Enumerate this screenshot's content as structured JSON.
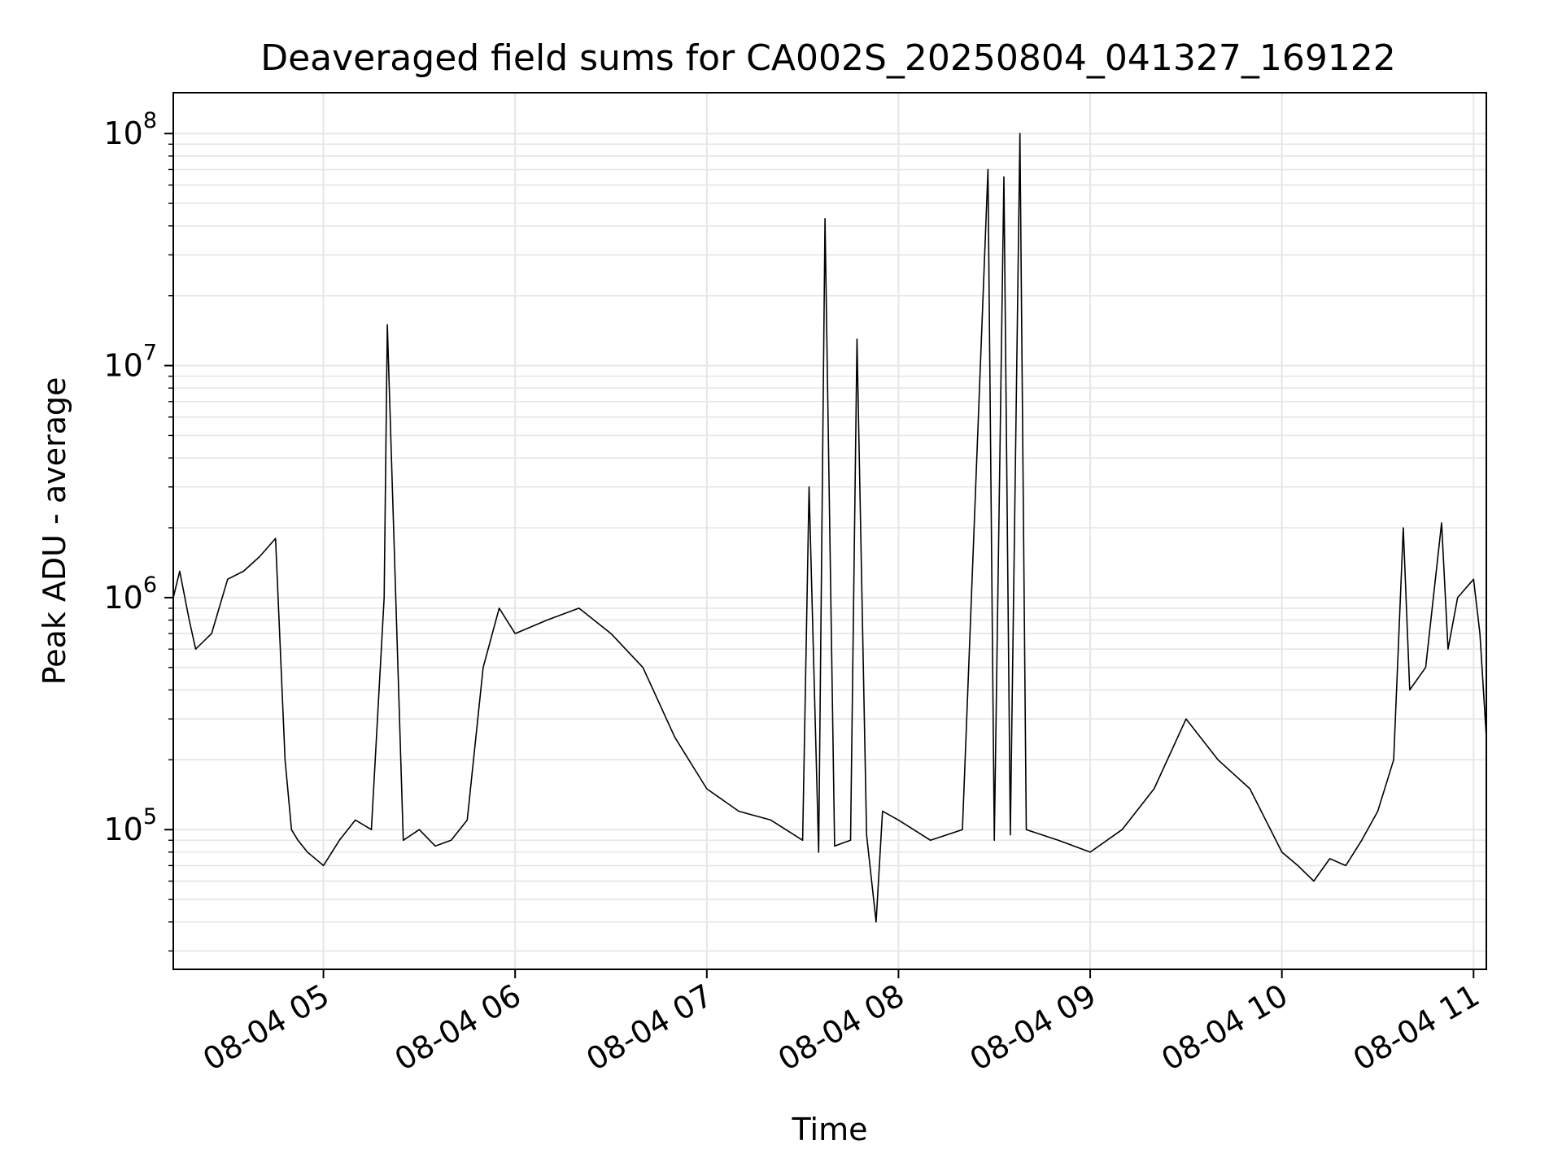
{
  "chart_data": {
    "type": "line",
    "title": "Deaveraged field sums for CA002S_20250804_041327_169122",
    "xlabel": "Time",
    "ylabel": "Peak ADU - average",
    "yscale": "log",
    "ylim": [
      25000,
      150000000
    ],
    "xlim": [
      "08-04 04:13",
      "08-04 11:04"
    ],
    "grid": true,
    "line_color": "#000000",
    "x_ticks": [
      "08-04 05",
      "08-04 06",
      "08-04 07",
      "08-04 08",
      "08-04 09",
      "08-04 10",
      "08-04 11"
    ],
    "y_ticks": [
      {
        "base": "10",
        "exp": "5",
        "value": 100000
      },
      {
        "base": "10",
        "exp": "6",
        "value": 1000000
      },
      {
        "base": "10",
        "exp": "7",
        "value": 10000000
      },
      {
        "base": "10",
        "exp": "8",
        "value": 100000000
      }
    ],
    "series": [
      {
        "x": [
          "08-04 04:13",
          "08-04 04:15",
          "08-04 04:18",
          "08-04 04:20",
          "08-04 04:25",
          "08-04 04:30",
          "08-04 04:35",
          "08-04 04:40",
          "08-04 04:45",
          "08-04 04:48",
          "08-04 04:50",
          "08-04 04:52",
          "08-04 04:55",
          "08-04 05:00",
          "08-04 05:05",
          "08-04 05:10",
          "08-04 05:15",
          "08-04 05:19",
          "08-04 05:20",
          "08-04 05:25",
          "08-04 05:30",
          "08-04 05:35",
          "08-04 05:40",
          "08-04 05:45",
          "08-04 05:50",
          "08-04 05:55",
          "08-04 06:00",
          "08-04 06:10",
          "08-04 06:20",
          "08-04 06:30",
          "08-04 06:40",
          "08-04 06:50",
          "08-04 07:00",
          "08-04 07:10",
          "08-04 07:20",
          "08-04 07:30",
          "08-04 07:32",
          "08-04 07:35",
          "08-04 07:37",
          "08-04 07:40",
          "08-04 07:45",
          "08-04 07:47",
          "08-04 07:50",
          "08-04 07:53",
          "08-04 07:55",
          "08-04 08:00",
          "08-04 08:10",
          "08-04 08:20",
          "08-04 08:28",
          "08-04 08:30",
          "08-04 08:33",
          "08-04 08:35",
          "08-04 08:38",
          "08-04 08:40",
          "08-04 08:50",
          "08-04 09:00",
          "08-04 09:10",
          "08-04 09:20",
          "08-04 09:30",
          "08-04 09:40",
          "08-04 09:50",
          "08-04 10:00",
          "08-04 10:05",
          "08-04 10:10",
          "08-04 10:15",
          "08-04 10:20",
          "08-04 10:25",
          "08-04 10:30",
          "08-04 10:35",
          "08-04 10:38",
          "08-04 10:40",
          "08-04 10:45",
          "08-04 10:50",
          "08-04 10:52",
          "08-04 10:55",
          "08-04 11:00",
          "08-04 11:02",
          "08-04 11:04"
        ],
        "y": [
          1000000,
          1300000,
          800000,
          600000,
          700000,
          1200000,
          1300000,
          1500000,
          1800000,
          200000,
          100000,
          90000,
          80000,
          70000,
          90000,
          110000,
          100000,
          1000000,
          15000000,
          90000,
          100000,
          85000,
          90000,
          110000,
          500000,
          900000,
          700000,
          800000,
          900000,
          700000,
          500000,
          250000,
          150000,
          120000,
          110000,
          90000,
          3000000,
          80000,
          43000000,
          85000,
          90000,
          13000000,
          95000,
          40000,
          120000,
          110000,
          90000,
          100000,
          70000000,
          90000,
          65000000,
          95000,
          100000000,
          100000,
          90000,
          80000,
          100000,
          150000,
          300000,
          200000,
          150000,
          80000,
          70000,
          60000,
          75000,
          70000,
          90000,
          120000,
          200000,
          2000000,
          400000,
          500000,
          2100000,
          600000,
          1000000,
          1200000,
          700000,
          250000
        ]
      }
    ]
  }
}
